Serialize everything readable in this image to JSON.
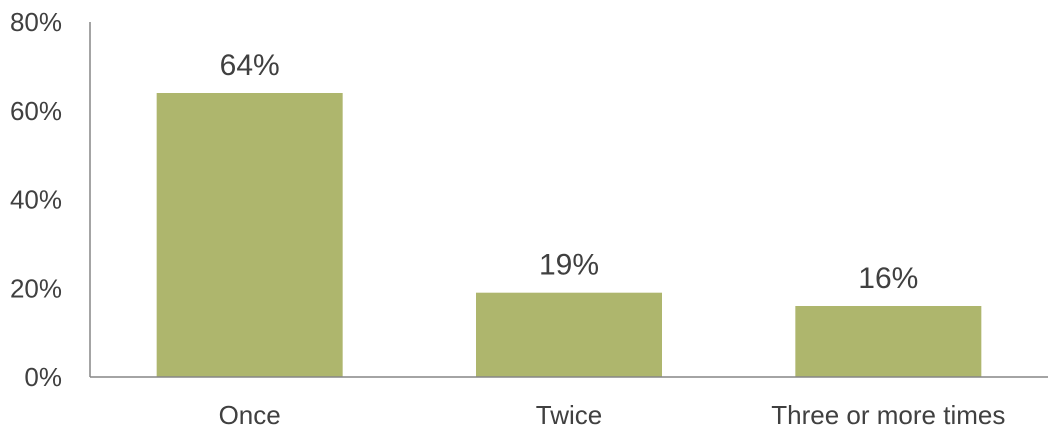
{
  "chart_data": {
    "type": "bar",
    "categories": [
      "Once",
      "Twice",
      "Three or more times"
    ],
    "values": [
      64,
      19,
      16
    ],
    "data_labels": [
      "64%",
      "19%",
      "16%"
    ],
    "ylim": [
      0,
      80
    ],
    "yticks": [
      0,
      20,
      40,
      60,
      80
    ],
    "ytick_labels": [
      "0%",
      "20%",
      "40%",
      "60%",
      "80%"
    ],
    "bar_color": "#aeb66d",
    "axis_color": "#868686",
    "text_color": "#404040",
    "grid": false,
    "legend": "none"
  }
}
